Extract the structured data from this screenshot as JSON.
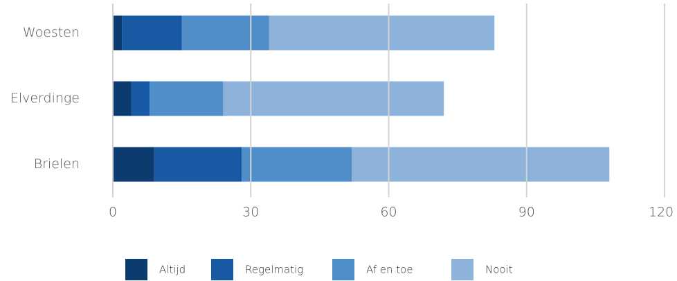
{
  "chart_data": {
    "type": "stacked-bar-horizontal",
    "categories": [
      "Woesten",
      "Elverdinge",
      "Brielen"
    ],
    "series": [
      {
        "name": "Altijd",
        "color": "#0c3b6f",
        "values": [
          2,
          4,
          9
        ]
      },
      {
        "name": "Regelmatig",
        "color": "#1859a3",
        "values": [
          13,
          4,
          19
        ]
      },
      {
        "name": "Af en toe",
        "color": "#4f8ec8",
        "values": [
          19,
          16,
          24
        ]
      },
      {
        "name": "Nooit",
        "color": "#8db3da",
        "values": [
          49,
          48,
          56
        ]
      }
    ],
    "xlim": [
      0,
      120
    ],
    "xticks": [
      0,
      30,
      60,
      90,
      120
    ],
    "grid": true,
    "legend": "bottom"
  }
}
